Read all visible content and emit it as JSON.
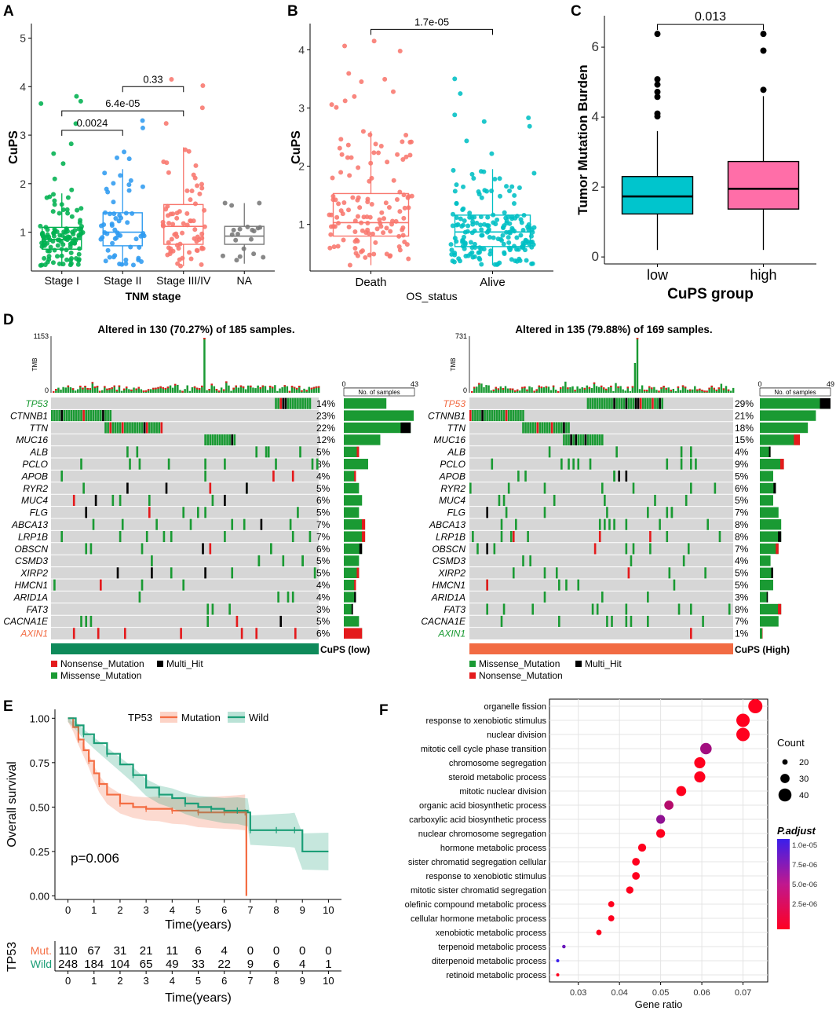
{
  "panel_letters": [
    "A",
    "B",
    "C",
    "D",
    "E",
    "F"
  ],
  "colors": {
    "green": "#00B050",
    "blue": "#2F9BF0",
    "salmon": "#F8766D",
    "gray": "#777777",
    "teal": "#00BFC4",
    "cyan": "#00C5CD",
    "pink": "#FF6EA8",
    "mut_green": "#1A9A33",
    "mut_red": "#E41A1C",
    "mut_black": "#000000",
    "mut_bg": "#D6D6D6",
    "low_bar": "#0E8A5A",
    "high_bar": "#F26B43",
    "km_mut": "#F46D43",
    "km_wild": "#1B9E77"
  },
  "chart_data": [
    {
      "panel": "A",
      "type": "boxplot",
      "title": "",
      "ylabel": "CuPS",
      "xlabel": "TNM stage",
      "ylim": [
        0.2,
        5.3
      ],
      "yticks": [
        1,
        2,
        3,
        4,
        5
      ],
      "categories": [
        "Stage I",
        "Stage II",
        "Stage III/IV",
        "NA"
      ],
      "boxes": [
        {
          "q1": 0.65,
          "median": 0.85,
          "q3": 1.1,
          "whisker_low": 0.3,
          "whisker_high": 1.8,
          "max_point": 3.8
        },
        {
          "q1": 0.72,
          "median": 1.0,
          "q3": 1.4,
          "whisker_low": 0.3,
          "whisker_high": 2.3,
          "max_point": 3.3
        },
        {
          "q1": 0.75,
          "median": 1.12,
          "q3": 1.57,
          "whisker_low": 0.3,
          "whisker_high": 2.75,
          "max_point": 4.15
        },
        {
          "q1": 0.75,
          "median": 0.92,
          "q3": 1.12,
          "whisker_low": 0.35,
          "whisker_high": 1.6,
          "max_point": 1.6
        }
      ],
      "point_counts": [
        120,
        60,
        75,
        20
      ],
      "comparisons": [
        {
          "label": "0.0024",
          "from": 0,
          "to": 1,
          "y": 3.1
        },
        {
          "label": "6.4e-05",
          "from": 0,
          "to": 2,
          "y": 3.5
        },
        {
          "label": "0.33",
          "from": 1,
          "to": 2,
          "y": 4.0
        }
      ]
    },
    {
      "panel": "B",
      "type": "boxplot",
      "title": "",
      "ylabel": "CuPS",
      "xlabel": "OS_status",
      "ylim": [
        0.2,
        4.45
      ],
      "yticks": [
        1,
        2,
        3,
        4
      ],
      "categories": [
        "Death",
        "Alive"
      ],
      "boxes": [
        {
          "q1": 0.8,
          "median": 1.03,
          "q3": 1.53,
          "whisker_low": 0.3,
          "whisker_high": 2.6,
          "max_point": 4.15
        },
        {
          "q1": 0.62,
          "median": 0.87,
          "q3": 1.16,
          "whisker_low": 0.3,
          "whisker_high": 1.95,
          "max_point": 3.5
        }
      ],
      "point_counts": [
        130,
        190
      ],
      "comparisons": [
        {
          "label": "1.7e-05",
          "from": 0,
          "to": 1,
          "y": 4.35
        }
      ]
    },
    {
      "panel": "C",
      "type": "boxplot",
      "title": "",
      "ylabel": "Tumor Mutation Burden",
      "xlabel": "CuPS group",
      "ylim": [
        -0.2,
        6.9
      ],
      "yticks": [
        0,
        2,
        4,
        6
      ],
      "categories": [
        "low",
        "high"
      ],
      "boxes": [
        {
          "q1": 1.23,
          "median": 1.73,
          "q3": 2.3,
          "whisker_low": 0.2,
          "whisker_high": 3.6,
          "outliers": [
            6.38,
            5.08,
            4.93,
            4.72,
            4.58,
            4.1,
            4.02
          ]
        },
        {
          "q1": 1.37,
          "median": 1.95,
          "q3": 2.73,
          "whisker_low": 0.2,
          "whisker_high": 4.6,
          "outliers": [
            6.38,
            5.9,
            4.78
          ]
        }
      ],
      "comparisons": [
        {
          "label": "0.013",
          "from": 0,
          "to": 1,
          "y": 6.65
        }
      ]
    },
    {
      "panel": "D",
      "type": "oncoplot",
      "groups": [
        {
          "title": "Altered in 130 (70.27%) of 185 samples.",
          "tmb_max": "1153",
          "tmb_label": "TMB",
          "bar_max": "43",
          "bar_label": "No. of samples",
          "group_label": "CuPS (low)",
          "legend": [
            "Nonsense_Mutation",
            "Multi_Hit",
            "Missense_Mutation"
          ],
          "genes": [
            {
              "name": "TP53",
              "pct": "14%"
            },
            {
              "name": "CTNNB1",
              "pct": "23%"
            },
            {
              "name": "TTN",
              "pct": "22%"
            },
            {
              "name": "MUC16",
              "pct": "12%"
            },
            {
              "name": "ALB",
              "pct": "5%"
            },
            {
              "name": "PCLO",
              "pct": "8%"
            },
            {
              "name": "APOB",
              "pct": "4%"
            },
            {
              "name": "RYR2",
              "pct": "5%"
            },
            {
              "name": "MUC4",
              "pct": "6%"
            },
            {
              "name": "FLG",
              "pct": "5%"
            },
            {
              "name": "ABCA13",
              "pct": "7%"
            },
            {
              "name": "LRP1B",
              "pct": "7%"
            },
            {
              "name": "OBSCN",
              "pct": "6%"
            },
            {
              "name": "CSMD3",
              "pct": "5%"
            },
            {
              "name": "XIRP2",
              "pct": "5%"
            },
            {
              "name": "HMCN1",
              "pct": "4%"
            },
            {
              "name": "ARID1A",
              "pct": "4%"
            },
            {
              "name": "FAT3",
              "pct": "3%"
            },
            {
              "name": "CACNA1E",
              "pct": "5%"
            },
            {
              "name": "AXIN1",
              "pct": "6%"
            }
          ]
        },
        {
          "title": "Altered in 135 (79.88%) of 169 samples.",
          "tmb_max": "731",
          "tmb_label": "TMB",
          "bar_max": "49",
          "bar_label": "No. of samples",
          "group_label": "CuPS (High)",
          "legend": [
            "Missense_Mutation",
            "Multi_Hit",
            "Nonsense_Mutation"
          ],
          "genes": [
            {
              "name": "TP53",
              "pct": "29%"
            },
            {
              "name": "CTNNB1",
              "pct": "21%"
            },
            {
              "name": "TTN",
              "pct": "18%"
            },
            {
              "name": "MUC16",
              "pct": "15%"
            },
            {
              "name": "ALB",
              "pct": "4%"
            },
            {
              "name": "PCLO",
              "pct": "9%"
            },
            {
              "name": "APOB",
              "pct": "5%"
            },
            {
              "name": "RYR2",
              "pct": "6%"
            },
            {
              "name": "MUC4",
              "pct": "5%"
            },
            {
              "name": "FLG",
              "pct": "7%"
            },
            {
              "name": "ABCA13",
              "pct": "8%"
            },
            {
              "name": "LRP1B",
              "pct": "8%"
            },
            {
              "name": "OBSCN",
              "pct": "7%"
            },
            {
              "name": "CSMD3",
              "pct": "4%"
            },
            {
              "name": "XIRP2",
              "pct": "5%"
            },
            {
              "name": "HMCN1",
              "pct": "5%"
            },
            {
              "name": "ARID1A",
              "pct": "3%"
            },
            {
              "name": "FAT3",
              "pct": "8%"
            },
            {
              "name": "CACNA1E",
              "pct": "7%"
            },
            {
              "name": "AXIN1",
              "pct": "1%"
            }
          ]
        }
      ]
    },
    {
      "panel": "E",
      "type": "kaplan-meier",
      "ylabel": "Overall survival",
      "xlabel": "Time(years)",
      "xlim": [
        -0.5,
        10.5
      ],
      "ylim": [
        -0.02,
        1.05
      ],
      "xticks": [
        0,
        1,
        2,
        3,
        4,
        5,
        6,
        7,
        8,
        9,
        10
      ],
      "yticks": [
        "0.00",
        "0.25",
        "0.50",
        "0.75",
        "1.00"
      ],
      "legend_title": "TP53",
      "pvalue": "p=0.006",
      "series": [
        {
          "name": "Mutation",
          "x": [
            0,
            0.2,
            0.4,
            0.6,
            0.8,
            1.0,
            1.2,
            1.5,
            2.0,
            2.5,
            3.0,
            3.5,
            4.0,
            4.5,
            5.0,
            5.5,
            6.0,
            6.5,
            6.8,
            6.85
          ],
          "y": [
            1.0,
            0.95,
            0.88,
            0.82,
            0.76,
            0.69,
            0.63,
            0.57,
            0.52,
            0.5,
            0.49,
            0.49,
            0.48,
            0.48,
            0.47,
            0.47,
            0.47,
            0.47,
            0.47,
            0.0
          ]
        },
        {
          "name": "Wild",
          "x": [
            0,
            0.3,
            0.6,
            1.0,
            1.5,
            2.0,
            2.5,
            3.0,
            3.5,
            4.0,
            4.5,
            5.0,
            5.5,
            6.0,
            6.5,
            6.9,
            7.0,
            7.5,
            8.0,
            8.5,
            8.7,
            9.0,
            10.0
          ],
          "y": [
            1.0,
            0.96,
            0.91,
            0.86,
            0.8,
            0.74,
            0.68,
            0.61,
            0.57,
            0.55,
            0.52,
            0.5,
            0.49,
            0.48,
            0.48,
            0.47,
            0.37,
            0.37,
            0.37,
            0.37,
            0.37,
            0.25,
            0.25
          ]
        }
      ],
      "risk_table": {
        "title": "TP53",
        "xlabel": "Time(years)",
        "rows": [
          {
            "name": "Mut.",
            "values": [
              "110",
              "67",
              "31",
              "21",
              "11",
              "6",
              "4",
              "0",
              "0",
              "0",
              "0"
            ]
          },
          {
            "name": "Wild",
            "values": [
              "248",
              "184",
              "104",
              "65",
              "49",
              "33",
              "22",
              "9",
              "6",
              "4",
              "1"
            ]
          }
        ]
      }
    },
    {
      "panel": "F",
      "type": "dotplot",
      "xlabel": "Gene ratio",
      "xlim": [
        0.023,
        0.076
      ],
      "xticks": [
        "0.03",
        "0.04",
        "0.05",
        "0.06",
        "0.07"
      ],
      "categories": [
        "organelle fission",
        "response to xenobiotic stimulus",
        "nuclear division",
        "mitotic cell cycle phase transition",
        "chromosome segregation",
        "steroid metabolic process",
        "mitotic nuclear division",
        "organic acid biosynthetic process",
        "carboxylic acid biosynthetic process",
        "nuclear chromosome segregation",
        "hormone metabolic process",
        "sister chromatid segregation cellular",
        "response to xenobiotic stimulus",
        "mitotic sister chromatid segregation",
        "olefinic compound metabolic process",
        "cellular hormone metabolic process",
        "xenobiotic metabolic process",
        "terpenoid metabolic process",
        "diterpenoid metabolic process",
        "retinoid metabolic process"
      ],
      "x": [
        0.073,
        0.07,
        0.07,
        0.061,
        0.0595,
        0.0595,
        0.055,
        0.052,
        0.05,
        0.05,
        0.0455,
        0.044,
        0.044,
        0.0425,
        0.038,
        0.038,
        0.035,
        0.0265,
        0.025,
        0.025
      ],
      "count": [
        43,
        41,
        41,
        36,
        35,
        35,
        32,
        30,
        29,
        29,
        27,
        26,
        26,
        25,
        22,
        22,
        20,
        15,
        14,
        14
      ],
      "padj": [
        1e-07,
        1e-07,
        1e-07,
        5e-06,
        1e-07,
        1e-07,
        1e-07,
        4e-06,
        6e-06,
        1e-07,
        1e-07,
        1e-07,
        1e-07,
        1e-07,
        1e-07,
        1e-07,
        1e-07,
        8e-06,
        1.05e-05,
        1e-07
      ],
      "size_legend": {
        "title": "Count",
        "values": [
          "20",
          "30",
          "40"
        ]
      },
      "color_legend": {
        "title": "P.adjust",
        "ticks": [
          "1.0e-05",
          "7.5e-06",
          "5.0e-06",
          "2.5e-06"
        ]
      }
    }
  ]
}
